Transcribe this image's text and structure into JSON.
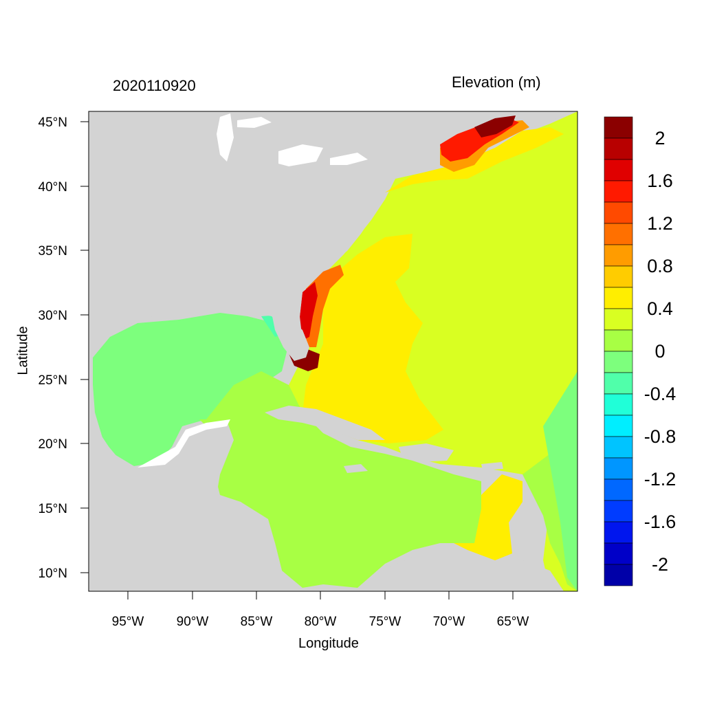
{
  "title_left": "2020110920",
  "title_right": "Elevation (m)",
  "xlabel": "Longitude",
  "ylabel": "Latitude",
  "x_ticks": [
    "95°W",
    "90°W",
    "85°W",
    "80°W",
    "75°W",
    "70°W",
    "65°W"
  ],
  "y_ticks": [
    "45°N",
    "40°N",
    "35°N",
    "30°N",
    "25°N",
    "20°N",
    "15°N",
    "10°N"
  ],
  "colorbar": {
    "labels": [
      "2",
      "1.6",
      "1.2",
      "0.8",
      "0.4",
      "0",
      "-0.4",
      "-0.8",
      "-1.2",
      "-1.6",
      "-2"
    ],
    "colors": [
      "#8b0000",
      "#b80000",
      "#e00000",
      "#ff1a00",
      "#ff4a00",
      "#ff7000",
      "#ff9c00",
      "#ffcc00",
      "#ffee00",
      "#d9ff22",
      "#a8ff44",
      "#7dff7d",
      "#50ffaa",
      "#20ffd8",
      "#00eeff",
      "#00c4ff",
      "#0096ff",
      "#0068ff",
      "#003cff",
      "#0016ee",
      "#0000c8",
      "#0000a8"
    ]
  },
  "map": {
    "land_color": "#d3d3d3",
    "water_color": "#ffffff"
  }
}
